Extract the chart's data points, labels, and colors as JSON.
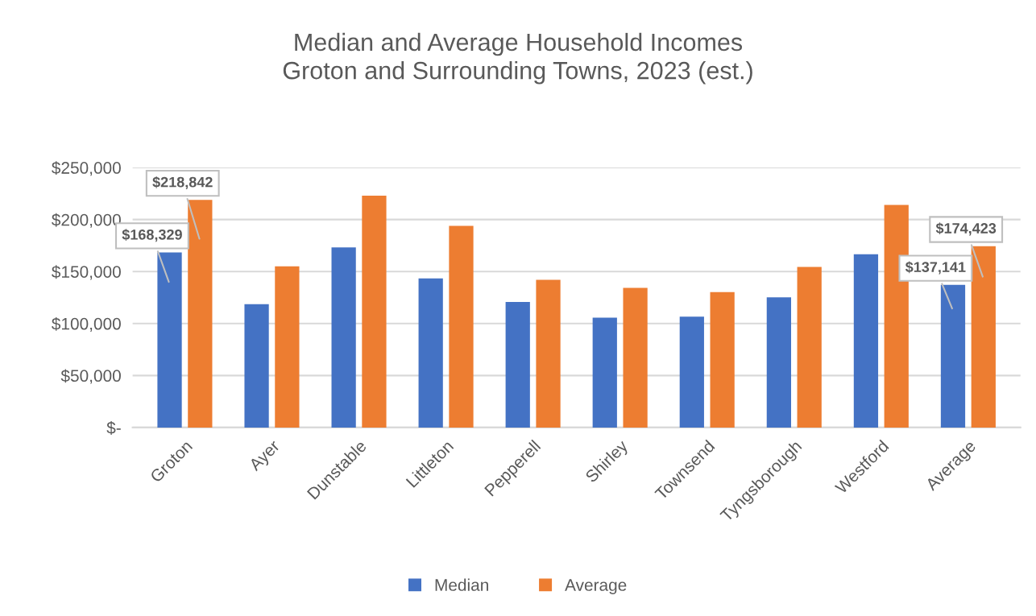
{
  "chart_data": {
    "type": "bar",
    "title": "Median and Average Household Incomes\nGroton and Surrounding Towns, 2023 (est.)",
    "categories": [
      "Groton",
      "Ayer",
      "Dunstable",
      "Littleton",
      "Pepperell",
      "Shirley",
      "Townsend",
      "Tyngsborough",
      "Westford",
      "Average"
    ],
    "series": [
      {
        "name": "Median",
        "color": "#4472c4",
        "values": [
          168329,
          118600,
          173200,
          143300,
          120800,
          105600,
          106600,
          125200,
          166700,
          137141
        ],
        "value_labels": [
          "$168,329",
          null,
          null,
          null,
          null,
          null,
          null,
          null,
          null,
          "$137,141"
        ]
      },
      {
        "name": "Average",
        "color": "#ed7d31",
        "values": [
          218842,
          155000,
          223000,
          194000,
          142000,
          134200,
          130200,
          154500,
          214000,
          174423
        ],
        "value_labels": [
          "$218,842",
          null,
          null,
          null,
          null,
          null,
          null,
          null,
          null,
          "$174,423"
        ]
      }
    ],
    "ylim": [
      0,
      250000
    ],
    "yticks": [
      {
        "value": 0,
        "label": "$-"
      },
      {
        "value": 50000,
        "label": "$50,000"
      },
      {
        "value": 100000,
        "label": "$100,000"
      },
      {
        "value": 150000,
        "label": "$150,000"
      },
      {
        "value": 200000,
        "label": "$200,000"
      },
      {
        "value": 250000,
        "label": "$250,000"
      }
    ],
    "grid": "y",
    "legend": "bottom"
  }
}
